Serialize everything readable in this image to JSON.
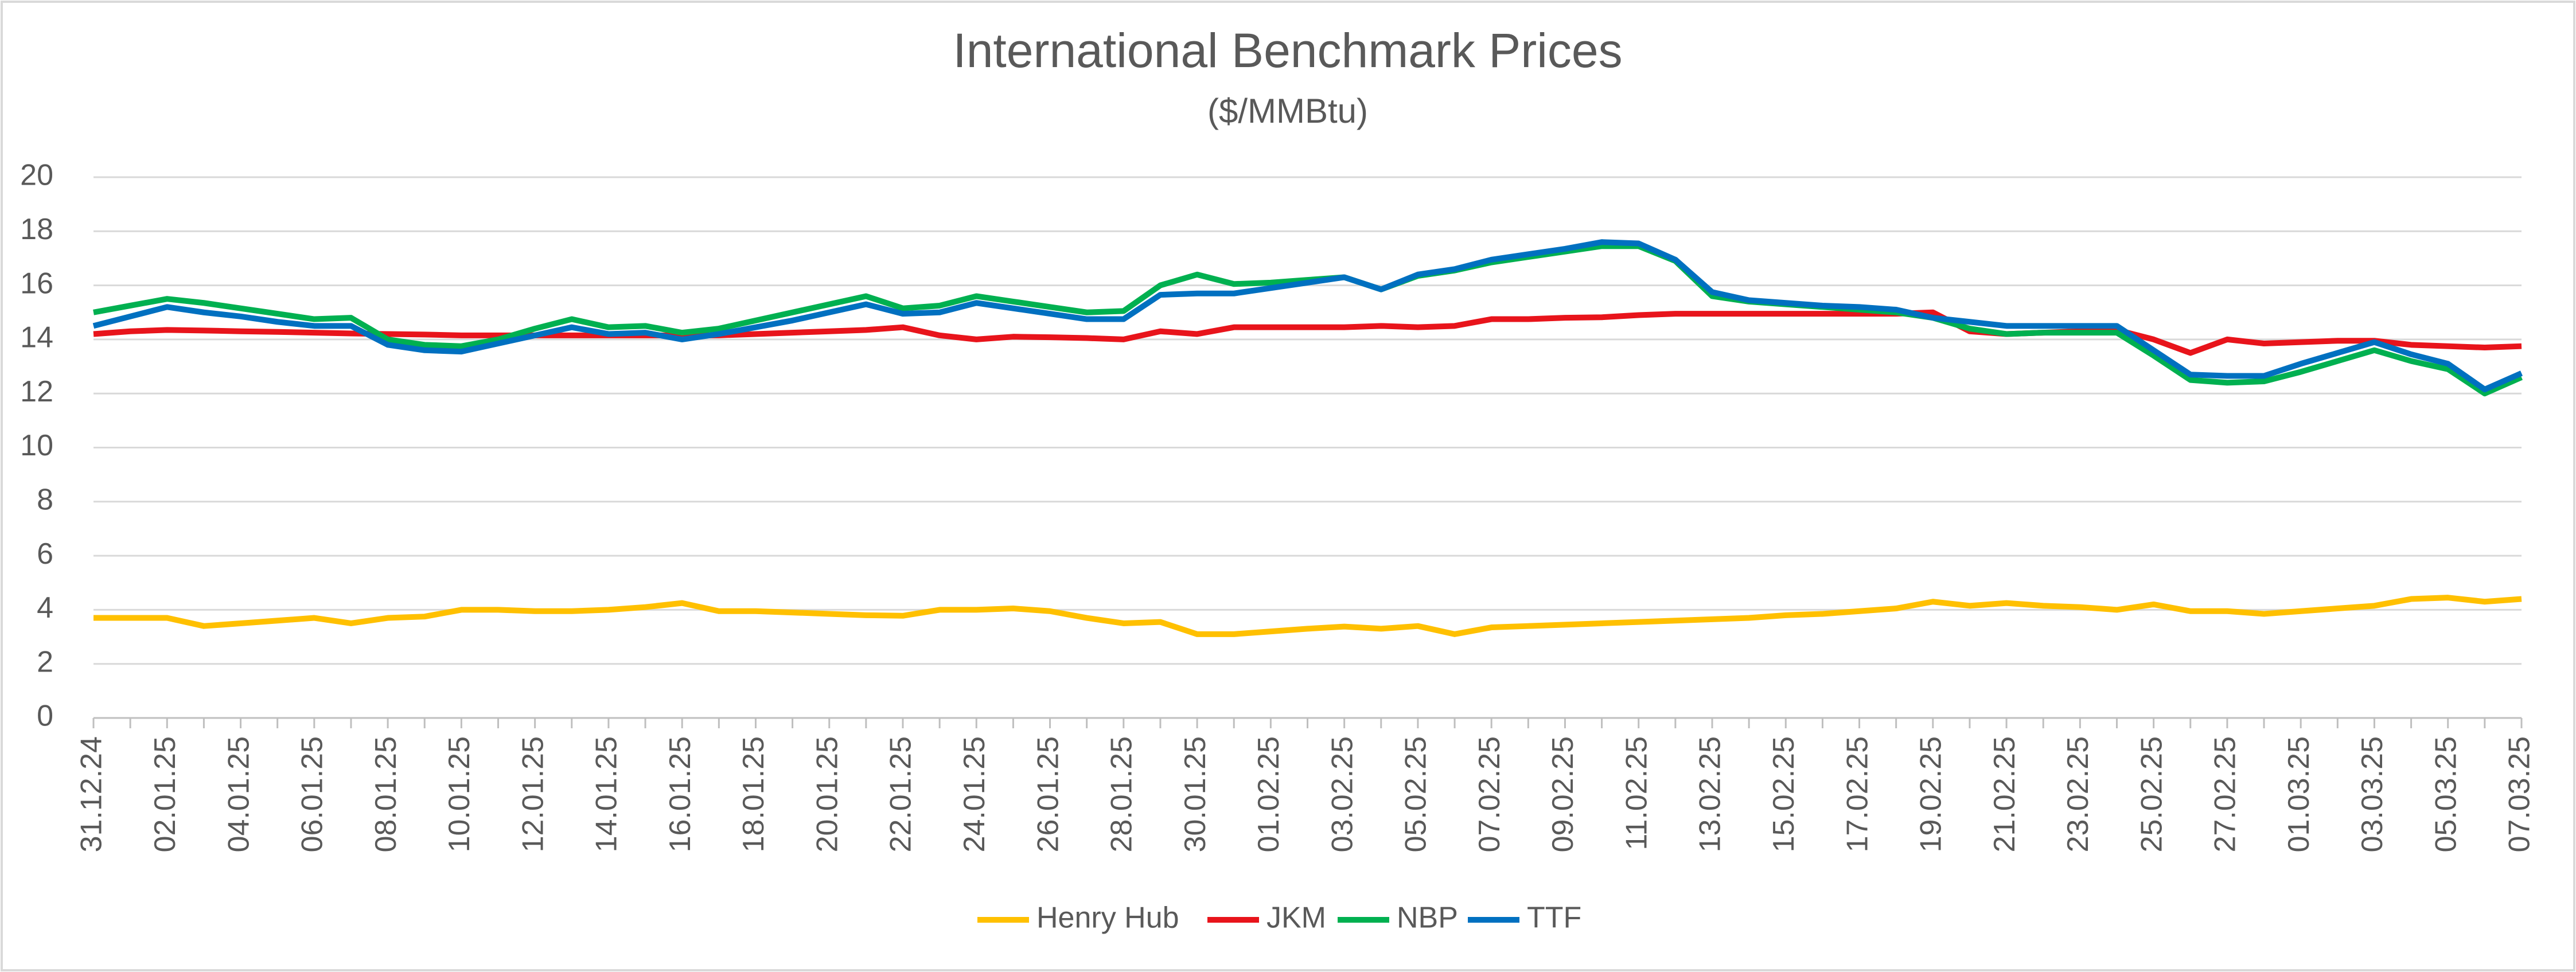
{
  "chart_data": {
    "type": "line",
    "title": "International Benchmark Prices",
    "subtitle": "($/MMBtu)",
    "categories": [
      "31.12.24",
      null,
      "02.01.25",
      null,
      "04.01.25",
      null,
      "06.01.25",
      null,
      "08.01.25",
      null,
      "10.01.25",
      null,
      "12.01.25",
      null,
      "14.01.25",
      null,
      "16.01.25",
      null,
      "18.01.25",
      null,
      "20.01.25",
      null,
      "22.01.25",
      null,
      "24.01.25",
      null,
      "26.01.25",
      null,
      "28.01.25",
      null,
      "30.01.25",
      null,
      "01.02.25",
      null,
      "03.02.25",
      null,
      "05.02.25",
      null,
      "07.02.25",
      null,
      "09.02.25",
      null,
      "11.02.25",
      null,
      "13.02.25",
      null,
      "15.02.25",
      null,
      "17.02.25",
      null,
      "19.02.25",
      null,
      "21.02.25",
      null,
      "23.02.25",
      null,
      "25.02.25",
      null,
      "27.02.25",
      null,
      "01.03.25",
      null,
      "03.03.25",
      null,
      "05.03.25",
      null,
      "07.03.25"
    ],
    "series": [
      {
        "name": "Henry Hub",
        "color": "#FFC000",
        "values": [
          3.7,
          3.7,
          3.7,
          3.4,
          3.5,
          3.6,
          3.7,
          3.5,
          3.7,
          3.75,
          4.0,
          4.0,
          3.95,
          3.95,
          4.0,
          4.1,
          4.25,
          3.95,
          3.95,
          3.9,
          3.85,
          3.8,
          3.78,
          4.0,
          4.0,
          4.05,
          3.95,
          3.7,
          3.5,
          3.55,
          3.1,
          3.1,
          3.2,
          3.3,
          3.38,
          3.3,
          3.4,
          3.1,
          3.35,
          3.4,
          3.45,
          3.5,
          3.55,
          3.6,
          3.65,
          3.7,
          3.8,
          3.85,
          3.95,
          4.05,
          4.3,
          4.15,
          4.25,
          4.15,
          4.1,
          4.0,
          4.2,
          3.95,
          3.95,
          3.85,
          3.95,
          4.05,
          4.15,
          4.4,
          4.45,
          4.3,
          4.4
        ]
      },
      {
        "name": "JKM",
        "color": "#E8141B",
        "values": [
          14.2,
          14.3,
          14.35,
          14.33,
          14.3,
          14.28,
          14.25,
          14.22,
          14.2,
          14.18,
          14.15,
          14.15,
          14.15,
          14.15,
          14.15,
          14.15,
          14.15,
          14.15,
          14.2,
          14.25,
          14.3,
          14.35,
          14.45,
          14.15,
          14.0,
          14.1,
          14.08,
          14.05,
          14.0,
          14.3,
          14.2,
          14.45,
          14.45,
          14.45,
          14.45,
          14.5,
          14.45,
          14.5,
          14.75,
          14.75,
          14.8,
          14.82,
          14.9,
          14.95,
          14.95,
          14.95,
          14.95,
          14.95,
          14.95,
          14.95,
          15.0,
          14.3,
          14.2,
          14.25,
          14.3,
          14.35,
          14.0,
          13.5,
          14.0,
          13.85,
          13.9,
          13.95,
          13.95,
          13.8,
          13.75,
          13.7,
          13.75
        ]
      },
      {
        "name": "NBP",
        "color": "#00B050",
        "values": [
          15.0,
          15.25,
          15.5,
          15.35,
          15.15,
          14.95,
          14.75,
          14.8,
          14.0,
          13.8,
          13.75,
          14.0,
          14.4,
          14.75,
          14.45,
          14.5,
          14.25,
          14.4,
          14.7,
          15.0,
          15.3,
          15.6,
          15.15,
          15.25,
          15.6,
          15.4,
          15.2,
          15.0,
          15.05,
          16.0,
          16.4,
          16.05,
          16.1,
          16.2,
          16.3,
          15.85,
          16.35,
          16.55,
          16.85,
          17.05,
          17.25,
          17.45,
          17.45,
          16.9,
          15.6,
          15.4,
          15.3,
          15.2,
          15.1,
          15.0,
          14.8,
          14.4,
          14.2,
          14.25,
          14.25,
          14.25,
          13.4,
          12.5,
          12.4,
          12.45,
          12.8,
          13.2,
          13.6,
          13.2,
          12.9,
          12.0,
          12.6
        ]
      },
      {
        "name": "TTF",
        "color": "#0070C0",
        "values": [
          14.5,
          14.85,
          15.2,
          15.0,
          14.85,
          14.65,
          14.5,
          14.5,
          13.8,
          13.6,
          13.55,
          13.85,
          14.15,
          14.45,
          14.2,
          14.25,
          14.0,
          14.2,
          14.45,
          14.7,
          15.0,
          15.3,
          14.95,
          15.0,
          15.35,
          15.15,
          14.95,
          14.75,
          14.75,
          15.65,
          15.7,
          15.7,
          15.9,
          16.1,
          16.3,
          15.85,
          16.4,
          16.6,
          16.95,
          17.15,
          17.35,
          17.6,
          17.55,
          16.95,
          15.75,
          15.45,
          15.35,
          15.25,
          15.2,
          15.1,
          14.8,
          14.65,
          14.5,
          14.5,
          14.5,
          14.5,
          13.6,
          12.7,
          12.65,
          12.65,
          13.1,
          13.5,
          13.9,
          13.45,
          13.1,
          12.15,
          12.75
        ]
      }
    ],
    "ylim": [
      0,
      20
    ],
    "yticks": [
      0,
      2,
      4,
      6,
      8,
      10,
      12,
      14,
      16,
      18,
      20
    ],
    "grid": true,
    "legend": "bottom"
  }
}
